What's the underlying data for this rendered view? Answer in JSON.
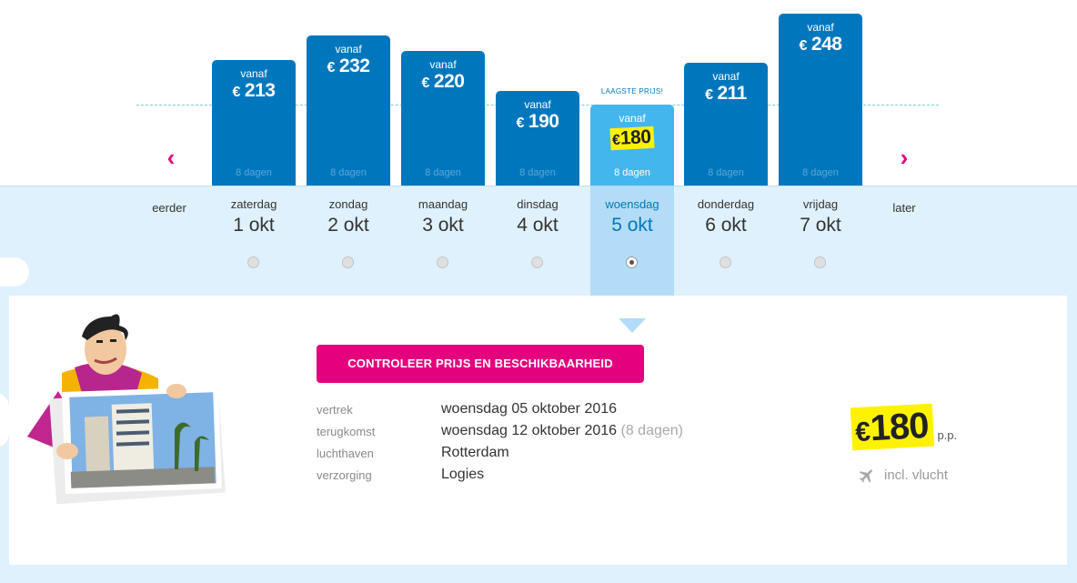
{
  "navigation": {
    "prev_label": "eerder",
    "next_label": "later",
    "prev_icon": "chevron-left-icon",
    "next_icon": "chevron-right-icon"
  },
  "lowest_price_label": "LAAGSTE PRIJS!",
  "dates": [
    {
      "weekday": "zaterdag",
      "date": "1 okt",
      "vanaf": "vanaf",
      "currency": "€",
      "price": "213",
      "duration": "8 dagen",
      "selected": false
    },
    {
      "weekday": "zondag",
      "date": "2 okt",
      "vanaf": "vanaf",
      "currency": "€",
      "price": "232",
      "duration": "8 dagen",
      "selected": false
    },
    {
      "weekday": "maandag",
      "date": "3 okt",
      "vanaf": "vanaf",
      "currency": "€",
      "price": "220",
      "duration": "8 dagen",
      "selected": false
    },
    {
      "weekday": "dinsdag",
      "date": "4 okt",
      "vanaf": "vanaf",
      "currency": "€",
      "price": "190",
      "duration": "8 dagen",
      "selected": false
    },
    {
      "weekday": "woensdag",
      "date": "5 okt",
      "vanaf": "vanaf",
      "currency": "€",
      "price": "180",
      "duration": "8 dagen",
      "selected": true
    },
    {
      "weekday": "donderdag",
      "date": "6 okt",
      "vanaf": "vanaf",
      "currency": "€",
      "price": "211",
      "duration": "8 dagen",
      "selected": false
    },
    {
      "weekday": "vrijdag",
      "date": "7 okt",
      "vanaf": "vanaf",
      "currency": "€",
      "price": "248",
      "duration": "8 dagen",
      "selected": false
    }
  ],
  "details": {
    "cta_label": "CONTROLEER PRIJS EN BESCHIKBAARHEID",
    "rows": [
      {
        "label": "vertrek",
        "value": "woensdag 05 oktober 2016",
        "extra": ""
      },
      {
        "label": "terugkomst",
        "value": "woensdag 12 oktober 2016",
        "extra": "(8 dagen)"
      },
      {
        "label": "luchthaven",
        "value": "Rotterdam",
        "extra": ""
      },
      {
        "label": "verzorging",
        "value": "Logies",
        "extra": ""
      }
    ],
    "price_currency": "€",
    "price_value": "180",
    "price_unit": "p.p.",
    "flight_icon": "plane-icon",
    "flight_label": "incl. vlucht"
  },
  "colors": {
    "brand_blue": "#0077bd",
    "selected_blue": "#44b6ee",
    "accent_pink": "#e5007e",
    "highlight_yellow": "#fff200",
    "page_background": "#dff1fc"
  }
}
